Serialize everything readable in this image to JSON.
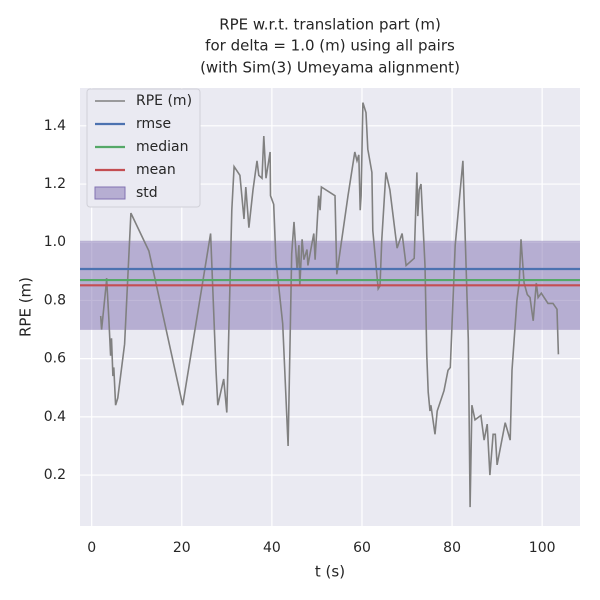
{
  "chart_data": {
    "type": "line",
    "title": [
      "RPE w.r.t. translation part (m)",
      "for delta = 1.0 (m) using all pairs",
      "(with Sim(3) Umeyama alignment)"
    ],
    "x_label": "t (s)",
    "y_label": "RPE (m)",
    "xlim": [
      -2.6,
      108.4
    ],
    "ylim": [
      0.025,
      1.53
    ],
    "xticks": [
      0,
      20,
      40,
      60,
      80,
      100
    ],
    "yticks": [
      0.2,
      0.4,
      0.6,
      0.8,
      {
        "value": 1,
        "label": "1.0"
      },
      1.2,
      1.4
    ],
    "grid": true,
    "legend": "upper left",
    "x": [
      2,
      2.2,
      3.3,
      3.3,
      3.8,
      4.2,
      4.4,
      4.7,
      4.9,
      5.3,
      5.8,
      7.3,
      8.7,
      12.7,
      20.2,
      26.4,
      27.6,
      28,
      29.3,
      30,
      31.1,
      31.6,
      32.9,
      33.8,
      34.2,
      34.9,
      35.8,
      36.7,
      37.1,
      37.8,
      38.2,
      38.7,
      39.6,
      39.7,
      40.4,
      40.9,
      42.4,
      43.6,
      44.4,
      44.9,
      45.6,
      46,
      46.2,
      46.7,
      47.1,
      47.8,
      48,
      49.3,
      49.6,
      50.4,
      50.7,
      51,
      54,
      54.4,
      56.9,
      58.4,
      58.9,
      59.3,
      59.6,
      59.8,
      60.2,
      60.9,
      61.3,
      62.2,
      62.4,
      63.6,
      64,
      64.4,
      65.3,
      66.2,
      67.8,
      68.9,
      69.8,
      71.6,
      72.2,
      72.4,
      72.7,
      73.1,
      74,
      74.4,
      74.7,
      75.1,
      75.3,
      76.2,
      76.7,
      78.2,
      79.1,
      79.6,
      80.7,
      82.4,
      83.6,
      84,
      84.4,
      85.1,
      86.4,
      87.1,
      87.8,
      88.4,
      89.1,
      89.6,
      90,
      91.8,
      92.9,
      93.3,
      94.4,
      94.9,
      95.3,
      96,
      96.7,
      97.3,
      98,
      98.7,
      99.1,
      99.8,
      101.3,
      102.4,
      103.3,
      103.6
    ],
    "series": [
      {
        "name": "RPE (m)",
        "color": "#808080",
        "values": [
          0.747,
          0.7,
          0.87,
          0.877,
          0.74,
          0.61,
          0.67,
          0.54,
          0.57,
          0.44,
          0.465,
          0.65,
          1.1,
          0.97,
          0.44,
          1.03,
          0.56,
          0.44,
          0.53,
          0.415,
          1.11,
          1.26,
          1.23,
          1.08,
          1.19,
          1.05,
          1.18,
          1.28,
          1.23,
          1.22,
          1.365,
          1.22,
          1.31,
          1.16,
          1.13,
          0.94,
          0.72,
          0.3,
          0.96,
          1.07,
          0.905,
          0.99,
          0.85,
          1.01,
          0.94,
          0.975,
          0.92,
          1.03,
          0.94,
          1.16,
          1.11,
          1.19,
          1.16,
          0.89,
          1.16,
          1.31,
          1.28,
          1.3,
          1.11,
          1.16,
          1.48,
          1.445,
          1.32,
          1.24,
          1.04,
          0.84,
          0.85,
          1.01,
          1.24,
          1.18,
          0.98,
          1.03,
          0.92,
          0.945,
          1.24,
          1.09,
          1.18,
          1.2,
          0.92,
          0.61,
          0.485,
          0.42,
          0.44,
          0.34,
          0.42,
          0.49,
          0.56,
          0.57,
          0.99,
          1.28,
          0.665,
          0.09,
          0.44,
          0.39,
          0.405,
          0.32,
          0.375,
          0.2,
          0.34,
          0.34,
          0.235,
          0.38,
          0.32,
          0.56,
          0.8,
          0.86,
          1.01,
          0.86,
          0.82,
          0.81,
          0.73,
          0.86,
          0.81,
          0.825,
          0.79,
          0.79,
          0.77,
          0.615
        ]
      }
    ],
    "reference_lines": [
      {
        "name": "rmse",
        "color": "#4c72b0",
        "value": 0.908
      },
      {
        "name": "median",
        "color": "#55a868",
        "value": 0.87
      },
      {
        "name": "mean",
        "color": "#c44e52",
        "value": 0.852
      }
    ],
    "std_band": {
      "name": "std",
      "color": "#8172b2",
      "value": 0.153
    }
  }
}
